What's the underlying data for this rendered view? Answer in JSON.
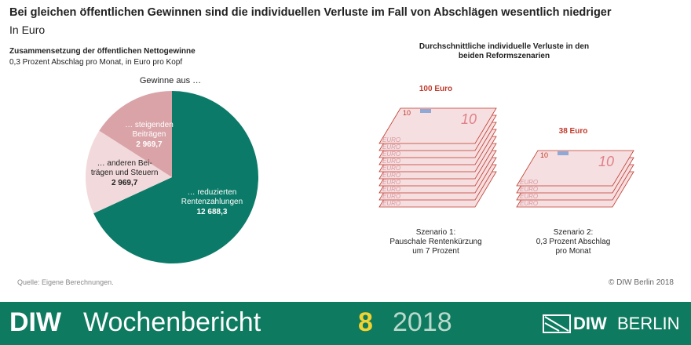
{
  "header": {
    "title": "Bei gleichen öffentlichen Gewinnen sind die individuellen Verluste im Fall von Abschlägen wesentlich niedriger",
    "subtitle": "In Euro"
  },
  "chart_data": [
    {
      "type": "pie",
      "title": "Zusammensetzung der öffentlichen Nettogewinne",
      "subtitle": "0,3 Prozent Abschlag pro Monat, in Euro pro Kopf",
      "annotation": "Gewinne aus …",
      "categories": [
        "… reduzierten\nRentenzahlungen",
        "… anderen Bei-\nträgen und Steuern",
        "… steigenden\nBeiträgen"
      ],
      "values": [
        12688.3,
        2969.7,
        2969.7
      ],
      "value_labels": [
        "12 688,3",
        "2 969,7",
        "2 969,7"
      ],
      "colors": [
        "#0b7a68",
        "#f2d9db",
        "#d9a3a8"
      ],
      "label_colors": [
        "#ffffff",
        "#222222",
        "#ffffff"
      ]
    },
    {
      "type": "pictogram",
      "title": "Durchschnittliche individuelle Verluste in den beiden Reformszenarien",
      "categories": [
        "Szenario 1:\nPauschale Rentenkürzung\num 7 Prozent",
        "Szenario 2:\n0,3 Prozent Abschlag\npro Monat"
      ],
      "values": [
        100,
        38
      ],
      "value_labels": [
        "100 Euro",
        "38 Euro"
      ],
      "note_value": 10,
      "note_label": "EURO",
      "color": "#c0392b"
    }
  ],
  "footer": {
    "source": "Quelle: Eigene Berechnungen.",
    "copyright": "© DIW Berlin 2018",
    "brand": "DIW",
    "publication": "Wochenbericht",
    "issue": "8",
    "year": "2018",
    "logo_brand": "DIW",
    "logo_city": "BERLIN"
  }
}
